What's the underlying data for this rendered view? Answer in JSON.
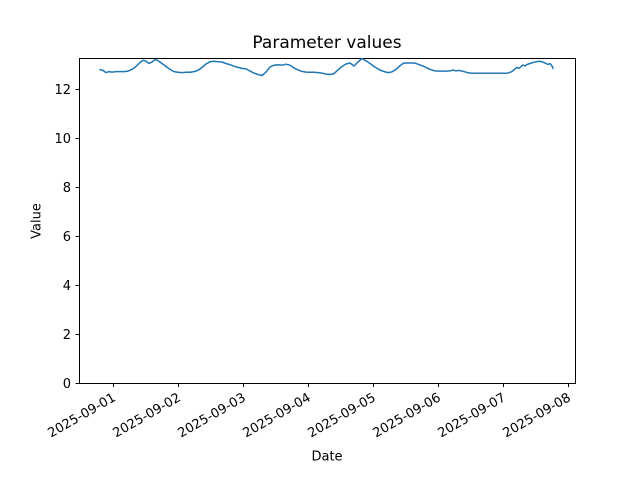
{
  "chart_data": {
    "type": "line",
    "title": "Parameter values",
    "xlabel": "Date",
    "ylabel": "Value",
    "grid": false,
    "legend": null,
    "line_color": "#1f77b4",
    "line_width": 1.5,
    "background_color": "#ffffff",
    "spine_color": "#000000",
    "x_axis": {
      "tick_labels": [
        "2025-09-01",
        "2025-09-02",
        "2025-09-03",
        "2025-09-04",
        "2025-09-05",
        "2025-09-06",
        "2025-09-07",
        "2025-09-08"
      ],
      "tick_days": [
        0,
        1,
        2,
        3,
        4,
        5,
        6,
        7
      ],
      "xlim_days": [
        -0.523,
        7.108
      ],
      "label_rotation_deg": 30
    },
    "y_axis": {
      "ticks": [
        0,
        2,
        4,
        6,
        8,
        10,
        12
      ],
      "ylim": [
        0,
        13.265
      ]
    },
    "series": [
      {
        "name": "Parameter values",
        "x_days": [
          -0.2,
          -0.154,
          -0.108,
          -0.062,
          -0.015,
          0.046,
          0.108,
          0.169,
          0.231,
          0.292,
          0.354,
          0.415,
          0.462,
          0.508,
          0.554,
          0.6,
          0.646,
          0.692,
          0.754,
          0.815,
          0.877,
          0.938,
          1.0,
          1.062,
          1.123,
          1.185,
          1.246,
          1.308,
          1.369,
          1.431,
          1.492,
          1.554,
          1.615,
          1.677,
          1.738,
          1.8,
          1.862,
          1.923,
          1.985,
          2.046,
          2.108,
          2.169,
          2.231,
          2.292,
          2.354,
          2.415,
          2.477,
          2.538,
          2.6,
          2.662,
          2.723,
          2.785,
          2.846,
          2.908,
          2.969,
          3.031,
          3.092,
          3.154,
          3.215,
          3.277,
          3.338,
          3.4,
          3.462,
          3.523,
          3.585,
          3.646,
          3.708,
          3.769,
          3.831,
          3.892,
          3.954,
          4.015,
          4.077,
          4.138,
          4.2,
          4.246,
          4.292,
          4.354,
          4.415,
          4.462,
          4.508,
          4.569,
          4.631,
          4.677,
          4.723,
          4.769,
          4.815,
          4.862,
          4.908,
          4.954,
          5.0,
          5.062,
          5.123,
          5.185,
          5.231,
          5.277,
          5.323,
          5.369,
          5.415,
          5.462,
          5.523,
          5.585,
          5.646,
          5.708,
          5.769,
          5.831,
          5.892,
          5.954,
          6.015,
          6.077,
          6.138,
          6.185,
          6.215,
          6.246,
          6.277,
          6.308,
          6.338,
          6.369,
          6.415,
          6.462,
          6.508,
          6.554,
          6.6,
          6.646,
          6.692,
          6.723,
          6.754,
          6.769
        ],
        "values": [
          12.79,
          12.76,
          12.67,
          12.71,
          12.69,
          12.71,
          12.71,
          12.71,
          12.73,
          12.8,
          12.92,
          13.08,
          13.17,
          13.14,
          13.04,
          13.1,
          13.2,
          13.16,
          13.04,
          12.92,
          12.8,
          12.71,
          12.68,
          12.67,
          12.68,
          12.68,
          12.71,
          12.76,
          12.88,
          13.02,
          13.11,
          13.13,
          13.11,
          13.1,
          13.04,
          12.99,
          12.93,
          12.88,
          12.84,
          12.82,
          12.73,
          12.65,
          12.59,
          12.55,
          12.69,
          12.9,
          12.97,
          12.99,
          12.97,
          13.01,
          12.97,
          12.86,
          12.78,
          12.72,
          12.69,
          12.68,
          12.68,
          12.67,
          12.65,
          12.61,
          12.59,
          12.63,
          12.78,
          12.92,
          13.02,
          13.06,
          12.94,
          13.1,
          13.24,
          13.15,
          13.04,
          12.92,
          12.82,
          12.74,
          12.69,
          12.67,
          12.7,
          12.8,
          12.95,
          13.04,
          13.06,
          13.06,
          13.06,
          13.03,
          12.98,
          12.94,
          12.88,
          12.82,
          12.77,
          12.74,
          12.73,
          12.73,
          12.73,
          12.74,
          12.78,
          12.74,
          12.76,
          12.73,
          12.7,
          12.66,
          12.64,
          12.64,
          12.64,
          12.64,
          12.64,
          12.64,
          12.64,
          12.64,
          12.64,
          12.65,
          12.71,
          12.82,
          12.88,
          12.84,
          12.92,
          12.98,
          12.94,
          13.0,
          13.04,
          13.08,
          13.11,
          13.13,
          13.11,
          13.06,
          13.0,
          13.04,
          12.94,
          12.84
        ]
      }
    ]
  }
}
